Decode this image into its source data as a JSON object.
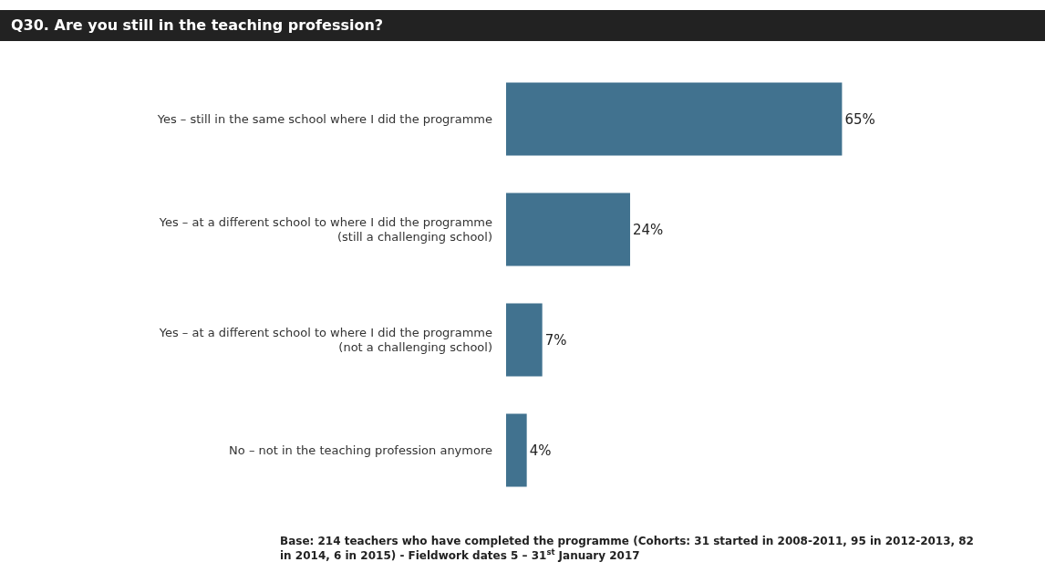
{
  "chart_data": {
    "type": "bar",
    "orientation": "horizontal",
    "title": "Q30. Are you still in the teaching profession?",
    "categories": [
      "Yes – still in the same school where I did the programme",
      "Yes – at a different school to where I did the programme\n(still a challenging school)",
      "Yes – at a different school to where I did the programme\n(not a challenging school)",
      "No – not in the teaching profession anymore"
    ],
    "values": [
      65,
      24,
      7,
      4
    ],
    "value_labels": [
      "65%",
      "24%",
      "7%",
      "4%"
    ],
    "color": "#41728f",
    "annotations": [
      "Base: 214 teachers who have completed the programme (Cohorts: 31 started in 2008-2011, 95 in 2012-2013, 82\nin 2014, 6 in 2015) - Fieldwork dates 5 – 31$^{st}$ January 2017"
    ]
  }
}
